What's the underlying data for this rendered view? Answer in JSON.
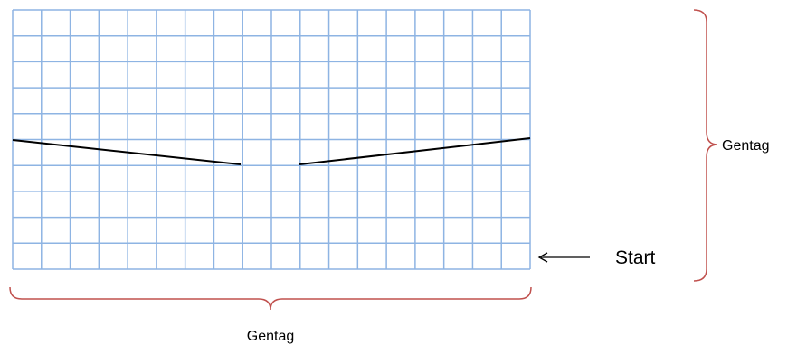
{
  "labels": {
    "right_brace": "Gentag",
    "bottom_brace": "Gentag",
    "start": "Start"
  },
  "grid": {
    "columns": 18,
    "rows": 10
  },
  "colors": {
    "grid_line": "#8EB4E3",
    "brace": "#C0504D",
    "pattern_line": "#000000",
    "arrow": "#000000"
  },
  "icons": {
    "start_arrow": "left-arrow-icon"
  }
}
